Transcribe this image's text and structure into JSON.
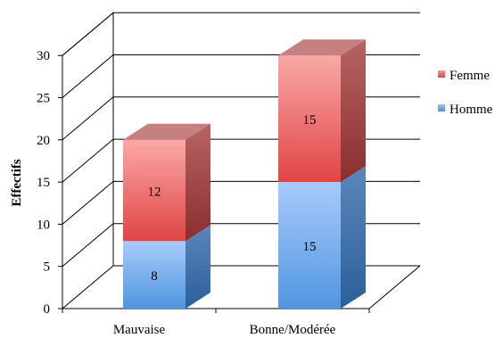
{
  "chart_data": {
    "type": "bar",
    "stacked": true,
    "three_d": true,
    "title": "",
    "xlabel": "",
    "ylabel": "Effectifs",
    "categories": [
      "Mauvaise",
      "Bonne/Modérée"
    ],
    "series": [
      {
        "name": "Homme",
        "values": [
          8,
          15
        ],
        "color": "#5b9bd5"
      },
      {
        "name": "Femme",
        "values": [
          12,
          15
        ],
        "color": "#e06666"
      }
    ],
    "ylim": [
      0,
      30
    ],
    "yticks": [
      "0",
      "5",
      "10",
      "15",
      "20",
      "25",
      "30"
    ],
    "grid": true,
    "legend": {
      "position": "right",
      "order": [
        "Femme",
        "Homme"
      ]
    },
    "data_labels": true
  }
}
